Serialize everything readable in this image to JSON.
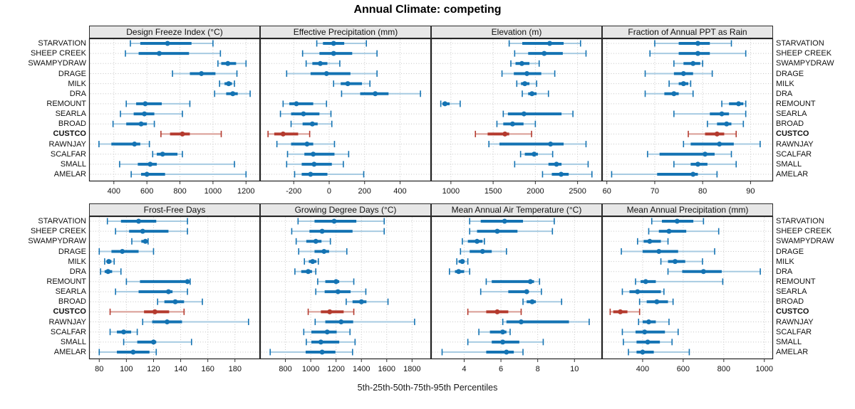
{
  "title": "Annual Climate: competing",
  "caption": "5th-25th-50th-75th-95th Percentiles",
  "sites": [
    "STARVATION",
    "SHEEP CREEK",
    "SWAMPYDRAW",
    "DRAGE",
    "MILK",
    "DRA",
    "REMOUNT",
    "SEARLA",
    "BROAD",
    "CUSTCO",
    "RAWNJAY",
    "SCALFAR",
    "SMALL",
    "AMELAR"
  ],
  "highlight_site": "CUSTCO",
  "percentile_levels": [
    5,
    25,
    50,
    75,
    95
  ],
  "colors": {
    "series": "#1473b3",
    "series_light": "#a7cbe2",
    "highlight": "#b43a2e",
    "highlight_light": "#d99c94",
    "grid": "#c6c6c6",
    "strip_bg": "#e7e7e7",
    "panel_border": "#222222"
  },
  "chart_data": [
    {
      "type": "dotplot-interval",
      "title": "Design Freeze Index (°C)",
      "xticks": [
        400,
        600,
        800,
        1000,
        1200
      ],
      "xlim": [
        250,
        1285
      ],
      "values": [
        [
          500,
          560,
          725,
          870,
          1000
        ],
        [
          470,
          550,
          675,
          855,
          1045
        ],
        [
          1030,
          1050,
          1090,
          1140,
          1200
        ],
        [
          755,
          860,
          930,
          1015,
          1145
        ],
        [
          1040,
          1070,
          1095,
          1115,
          1130
        ],
        [
          1010,
          1080,
          1120,
          1150,
          1225
        ],
        [
          475,
          535,
          590,
          690,
          860
        ],
        [
          440,
          520,
          585,
          645,
          815
        ],
        [
          395,
          475,
          565,
          600,
          645
        ],
        [
          685,
          740,
          815,
          860,
          1050
        ],
        [
          310,
          385,
          525,
          560,
          615
        ],
        [
          635,
          660,
          695,
          785,
          815
        ],
        [
          435,
          545,
          620,
          660,
          1130
        ],
        [
          505,
          565,
          600,
          710,
          1200
        ]
      ]
    },
    {
      "type": "dotplot-interval",
      "title": "Effective Precipitation (mm)",
      "xticks": [
        -200,
        0,
        200,
        400
      ],
      "xlim": [
        -390,
        575
      ],
      "values": [
        [
          -70,
          -35,
          25,
          85,
          210
        ],
        [
          -150,
          -55,
          25,
          130,
          270
        ],
        [
          -130,
          -95,
          -50,
          -10,
          60
        ],
        [
          -240,
          -105,
          -15,
          120,
          270
        ],
        [
          25,
          65,
          105,
          185,
          230
        ],
        [
          70,
          175,
          260,
          335,
          515
        ],
        [
          -260,
          -225,
          -185,
          -90,
          -15
        ],
        [
          -275,
          -215,
          -145,
          -55,
          10
        ],
        [
          -215,
          -150,
          -95,
          -65,
          15
        ],
        [
          -345,
          -310,
          -260,
          -175,
          -110
        ],
        [
          -295,
          -215,
          -125,
          -90,
          30
        ],
        [
          -235,
          -140,
          -90,
          30,
          110
        ],
        [
          -240,
          -155,
          -85,
          15,
          80
        ],
        [
          -195,
          -155,
          -105,
          -10,
          195
        ]
      ]
    },
    {
      "type": "dotplot-interval",
      "title": "Elevation (m)",
      "xticks": [
        1000,
        1500,
        2000,
        2500
      ],
      "xlim": [
        765,
        2790
      ],
      "values": [
        [
          1690,
          1845,
          2170,
          2335,
          2535
        ],
        [
          1755,
          1915,
          2105,
          2325,
          2600
        ],
        [
          1710,
          1765,
          1840,
          1930,
          2045
        ],
        [
          1605,
          1745,
          1900,
          2070,
          2230
        ],
        [
          1780,
          1830,
          1875,
          1930,
          2015
        ],
        [
          1845,
          1915,
          1960,
          2015,
          2155
        ],
        [
          880,
          900,
          930,
          985,
          1110
        ],
        [
          1620,
          1675,
          1865,
          2310,
          2445
        ],
        [
          1545,
          1620,
          1730,
          1860,
          2000
        ],
        [
          1290,
          1435,
          1640,
          1690,
          1955
        ],
        [
          1450,
          1575,
          2180,
          2335,
          2600
        ],
        [
          1825,
          1875,
          1985,
          2030,
          2205
        ],
        [
          1755,
          2155,
          2250,
          2310,
          2625
        ],
        [
          2085,
          2195,
          2305,
          2395,
          2670
        ]
      ]
    },
    {
      "type": "dotplot-interval",
      "title": "Fraction of Annual PPT as Rain",
      "xticks": [
        60,
        70,
        80,
        90
      ],
      "xlim": [
        59,
        94.7
      ],
      "values": [
        [
          70,
          75,
          79,
          81.5,
          86
        ],
        [
          69,
          75,
          79,
          81.5,
          89
        ],
        [
          74,
          76,
          78,
          79.5,
          80
        ],
        [
          68,
          74,
          76,
          78,
          82
        ],
        [
          73,
          75,
          76,
          77,
          77.5
        ],
        [
          68,
          72,
          74,
          75,
          78
        ],
        [
          84,
          85.5,
          87.5,
          88.5,
          89
        ],
        [
          74,
          81.5,
          84,
          85.5,
          89
        ],
        [
          81,
          83,
          85,
          86,
          88.5
        ],
        [
          77,
          80.5,
          83,
          84.5,
          87
        ],
        [
          76,
          77.5,
          83.5,
          86.5,
          92
        ],
        [
          68.5,
          71,
          80.5,
          82.5,
          86
        ],
        [
          74,
          77.5,
          79,
          81,
          87
        ],
        [
          61,
          70.5,
          78,
          79,
          83
        ]
      ]
    },
    {
      "type": "dotplot-interval",
      "title": "Frost-Free Days",
      "xticks": [
        80,
        100,
        120,
        140,
        160,
        180
      ],
      "xlim": [
        72.5,
        198.5
      ],
      "values": [
        [
          86,
          96,
          109,
          122,
          145
        ],
        [
          92,
          102,
          112,
          131,
          145
        ],
        [
          104,
          111,
          114,
          115,
          116
        ],
        [
          80,
          89,
          97,
          109,
          120
        ],
        [
          84,
          85.5,
          87,
          89,
          91
        ],
        [
          81,
          84,
          86.5,
          89.5,
          96
        ],
        [
          100,
          110,
          145,
          146,
          147
        ],
        [
          92,
          109,
          131,
          134,
          145
        ],
        [
          123,
          128,
          136,
          142.5,
          156
        ],
        [
          88,
          113,
          121,
          131.5,
          142.5
        ],
        [
          112,
          119,
          130,
          141,
          190
        ],
        [
          88,
          93,
          98,
          103.5,
          108
        ],
        [
          98,
          108,
          120,
          122,
          148
        ],
        [
          80,
          93,
          105,
          117,
          122
        ]
      ]
    },
    {
      "type": "dotplot-interval",
      "title": "Growing Degree Days (°C)",
      "xticks": [
        800,
        1000,
        1200,
        1400,
        1600,
        1800
      ],
      "xlim": [
        600,
        1950
      ],
      "values": [
        [
          900,
          1030,
          1185,
          1360,
          1580
        ],
        [
          850,
          990,
          1090,
          1330,
          1580
        ],
        [
          885,
          965,
          1040,
          1085,
          1155
        ],
        [
          905,
          1030,
          1105,
          1145,
          1285
        ],
        [
          950,
          985,
          1015,
          1045,
          1060
        ],
        [
          875,
          925,
          980,
          1010,
          1040
        ],
        [
          1055,
          1115,
          1200,
          1225,
          1340
        ],
        [
          1040,
          1110,
          1215,
          1315,
          1435
        ],
        [
          1280,
          1330,
          1400,
          1440,
          1610
        ],
        [
          980,
          1080,
          1150,
          1260,
          1340
        ],
        [
          1035,
          1115,
          1240,
          1335,
          1820
        ],
        [
          945,
          1005,
          1130,
          1205,
          1310
        ],
        [
          965,
          1005,
          1080,
          1225,
          1350
        ],
        [
          680,
          960,
          1090,
          1195,
          1330
        ]
      ]
    },
    {
      "type": "dotplot-interval",
      "title": "Mean Annual Air Temperature (°C)",
      "xticks": [
        4,
        6,
        8,
        10
      ],
      "xlim": [
        2.2,
        11.5
      ],
      "values": [
        [
          4.3,
          4.9,
          6.2,
          7.2,
          8.9
        ],
        [
          4.3,
          4.7,
          5.8,
          6.9,
          8.8
        ],
        [
          3.9,
          4.2,
          4.7,
          5.0,
          5.1
        ],
        [
          3.8,
          4.3,
          5.0,
          5.5,
          6.3
        ],
        [
          3.6,
          3.7,
          3.9,
          4.0,
          4.2
        ],
        [
          3.2,
          3.5,
          3.7,
          4.0,
          4.3
        ],
        [
          5.2,
          5.5,
          7.6,
          7.8,
          8.1
        ],
        [
          4.9,
          6.4,
          7.4,
          7.5,
          8.2
        ],
        [
          7.2,
          7.4,
          7.7,
          7.9,
          9.3
        ],
        [
          4.2,
          5.2,
          5.8,
          6.4,
          7.1
        ],
        [
          6.1,
          6.3,
          7.1,
          9.7,
          10.8
        ],
        [
          4.8,
          5.4,
          6.1,
          6.3,
          6.5
        ],
        [
          4.2,
          5.5,
          6.1,
          7.0,
          8.3
        ],
        [
          2.8,
          5.2,
          6.3,
          6.7,
          7.2
        ]
      ]
    },
    {
      "type": "dotplot-interval",
      "title": "Mean Annual Precipitation (mm)",
      "xticks": [
        400,
        600,
        800,
        1000
      ],
      "xlim": [
        200,
        1043
      ],
      "values": [
        [
          445,
          495,
          570,
          650,
          700
        ],
        [
          430,
          480,
          530,
          615,
          775
        ],
        [
          375,
          405,
          435,
          490,
          525
        ],
        [
          295,
          400,
          480,
          575,
          755
        ],
        [
          490,
          525,
          560,
          610,
          695
        ],
        [
          525,
          595,
          700,
          790,
          980
        ],
        [
          365,
          390,
          415,
          465,
          795
        ],
        [
          300,
          335,
          375,
          490,
          505
        ],
        [
          385,
          420,
          470,
          525,
          550
        ],
        [
          240,
          255,
          290,
          325,
          385
        ],
        [
          380,
          400,
          430,
          465,
          530
        ],
        [
          300,
          365,
          410,
          510,
          575
        ],
        [
          305,
          370,
          425,
          485,
          545
        ],
        [
          330,
          370,
          400,
          455,
          630
        ]
      ]
    }
  ]
}
